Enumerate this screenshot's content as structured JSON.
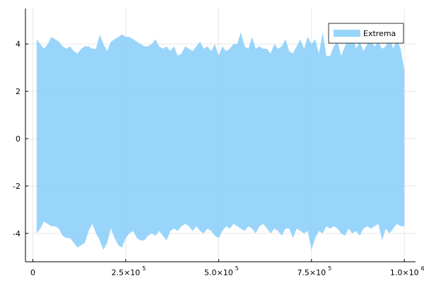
{
  "chart_data": {
    "type": "area",
    "title": "",
    "xlabel": "",
    "ylabel": "",
    "xlim": [
      -20000,
      1030000
    ],
    "ylim": [
      -5.2,
      5.5
    ],
    "grid": true,
    "legend_position": "top-right",
    "series": [
      {
        "name": "Extrema",
        "color": "#87CEFA",
        "x": [
          10000,
          20000,
          30000,
          40000,
          50000,
          60000,
          70000,
          80000,
          90000,
          100000,
          110000,
          120000,
          130000,
          140000,
          150000,
          160000,
          170000,
          180000,
          190000,
          200000,
          210000,
          220000,
          230000,
          240000,
          250000,
          260000,
          270000,
          280000,
          290000,
          300000,
          310000,
          320000,
          330000,
          340000,
          350000,
          360000,
          370000,
          380000,
          390000,
          400000,
          410000,
          420000,
          430000,
          440000,
          450000,
          460000,
          470000,
          480000,
          490000,
          500000,
          510000,
          520000,
          530000,
          540000,
          550000,
          560000,
          570000,
          580000,
          590000,
          600000,
          610000,
          620000,
          630000,
          640000,
          650000,
          660000,
          670000,
          680000,
          690000,
          700000,
          710000,
          720000,
          730000,
          740000,
          750000,
          760000,
          770000,
          780000,
          790000,
          800000,
          810000,
          820000,
          830000,
          840000,
          850000,
          860000,
          870000,
          880000,
          890000,
          900000,
          910000,
          920000,
          930000,
          940000,
          950000,
          960000,
          970000,
          980000,
          990000,
          1000000
        ],
        "upper": [
          4.2,
          4.0,
          3.8,
          4.0,
          4.3,
          4.2,
          4.1,
          3.9,
          3.8,
          3.9,
          3.7,
          3.6,
          3.8,
          3.9,
          3.9,
          3.8,
          3.8,
          4.4,
          4.0,
          3.7,
          4.1,
          4.2,
          4.3,
          4.4,
          4.3,
          4.3,
          4.2,
          4.1,
          4.0,
          3.9,
          3.9,
          4.0,
          4.2,
          3.9,
          3.8,
          3.9,
          3.7,
          3.9,
          3.5,
          3.6,
          3.9,
          3.8,
          3.7,
          3.9,
          4.1,
          3.8,
          3.9,
          3.7,
          4.0,
          3.5,
          3.9,
          3.7,
          3.8,
          4.0,
          4.0,
          4.5,
          3.9,
          3.8,
          4.3,
          3.8,
          3.9,
          3.8,
          3.8,
          3.6,
          4.0,
          3.8,
          3.9,
          4.2,
          3.7,
          3.6,
          3.9,
          4.2,
          3.8,
          4.3,
          4.0,
          4.2,
          3.6,
          4.5,
          3.5,
          3.5,
          3.9,
          4.1,
          3.5,
          3.9,
          4.2,
          4.4,
          3.8,
          4.1,
          3.7,
          4.0,
          4.1,
          3.9,
          4.1,
          3.8,
          3.9,
          4.3,
          3.8,
          4.2,
          3.8,
          2.9
        ],
        "lower": [
          -4.0,
          -3.8,
          -3.5,
          -3.6,
          -3.7,
          -3.7,
          -3.8,
          -4.1,
          -4.2,
          -4.2,
          -4.4,
          -4.6,
          -4.5,
          -4.4,
          -3.9,
          -3.6,
          -4.0,
          -4.3,
          -4.7,
          -4.4,
          -3.8,
          -4.2,
          -4.5,
          -4.6,
          -4.2,
          -4.0,
          -3.9,
          -4.2,
          -4.3,
          -4.3,
          -4.1,
          -4.0,
          -4.1,
          -3.9,
          -4.1,
          -4.3,
          -3.9,
          -3.8,
          -3.9,
          -3.7,
          -3.6,
          -3.7,
          -3.9,
          -3.7,
          -3.9,
          -4.0,
          -3.8,
          -3.9,
          -4.1,
          -4.2,
          -3.9,
          -3.7,
          -3.8,
          -3.6,
          -3.7,
          -3.8,
          -3.9,
          -3.7,
          -3.8,
          -4.0,
          -3.7,
          -3.6,
          -3.8,
          -4.0,
          -3.8,
          -3.9,
          -4.1,
          -3.8,
          -3.8,
          -4.2,
          -3.8,
          -3.9,
          -4.0,
          -3.9,
          -4.7,
          -4.2,
          -3.9,
          -4.0,
          -3.7,
          -3.8,
          -3.7,
          -3.8,
          -4.0,
          -4.1,
          -3.8,
          -4.0,
          -3.9,
          -4.1,
          -3.8,
          -3.7,
          -3.8,
          -3.7,
          -3.6,
          -4.3,
          -3.8,
          -4.0,
          -3.8,
          -3.6,
          -3.7,
          -3.7
        ]
      }
    ],
    "x_ticks": [
      {
        "value": 0,
        "mantissa": "0",
        "exponent": ""
      },
      {
        "value": 250000,
        "mantissa": "2.5×10",
        "exponent": "5"
      },
      {
        "value": 500000,
        "mantissa": "5.0×10",
        "exponent": "5"
      },
      {
        "value": 750000,
        "mantissa": "7.5×10",
        "exponent": "5"
      },
      {
        "value": 1000000,
        "mantissa": "1.0×10",
        "exponent": "6"
      }
    ],
    "y_ticks": [
      {
        "value": -4,
        "label": "-4"
      },
      {
        "value": -2,
        "label": "-2"
      },
      {
        "value": 0,
        "label": "0"
      },
      {
        "value": 2,
        "label": "2"
      },
      {
        "value": 4,
        "label": "4"
      }
    ]
  },
  "legend": {
    "label": "Extrema"
  },
  "style": {
    "fill_color": "#87CEFA",
    "fill_opacity": 0.85,
    "grid_color": "#e6e6e6",
    "axis_color": "#000000",
    "background": "#ffffff"
  }
}
